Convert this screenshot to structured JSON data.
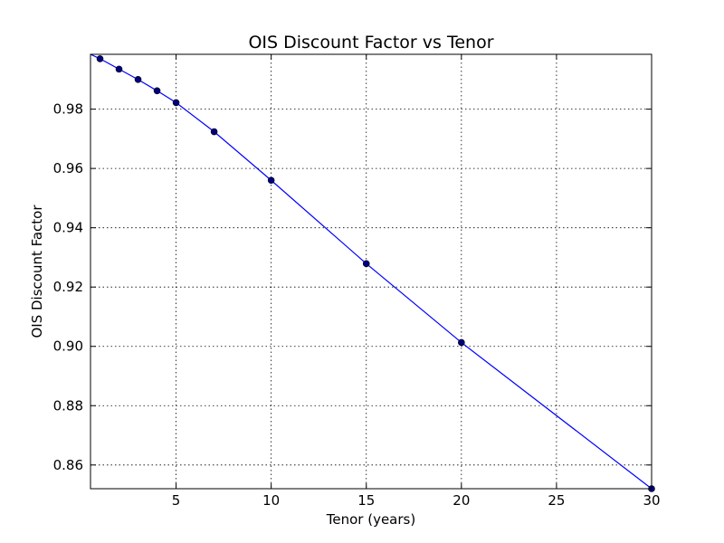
{
  "chart_data": {
    "type": "line",
    "title": "OIS Discount Factor vs Tenor",
    "xlabel": "Tenor (years)",
    "ylabel": "OIS Discount Factor",
    "xlim": [
      0.5,
      30
    ],
    "ylim": [
      0.852,
      0.9985
    ],
    "xticks": [
      5,
      10,
      15,
      20,
      25,
      30
    ],
    "yticks": [
      0.86,
      0.88,
      0.9,
      0.92,
      0.94,
      0.96,
      0.98
    ],
    "ytick_decimals": 2,
    "grid": true,
    "legend": "none",
    "line_color": "#0000ff",
    "marker_color": "#00007f",
    "series": [
      {
        "line_x": [
          0.5,
          1,
          2,
          3,
          4,
          5,
          7,
          10,
          15,
          20,
          30
        ],
        "line_y": [
          0.9985,
          0.997,
          0.9935,
          0.99,
          0.9862,
          0.9822,
          0.9724,
          0.956,
          0.9279,
          0.9013,
          0.852
        ],
        "marker_x": [
          1,
          2,
          3,
          4,
          5,
          7,
          10,
          15,
          20,
          30
        ],
        "marker_y": [
          0.997,
          0.9935,
          0.99,
          0.9862,
          0.9822,
          0.9724,
          0.956,
          0.9279,
          0.9013,
          0.852
        ]
      }
    ]
  }
}
